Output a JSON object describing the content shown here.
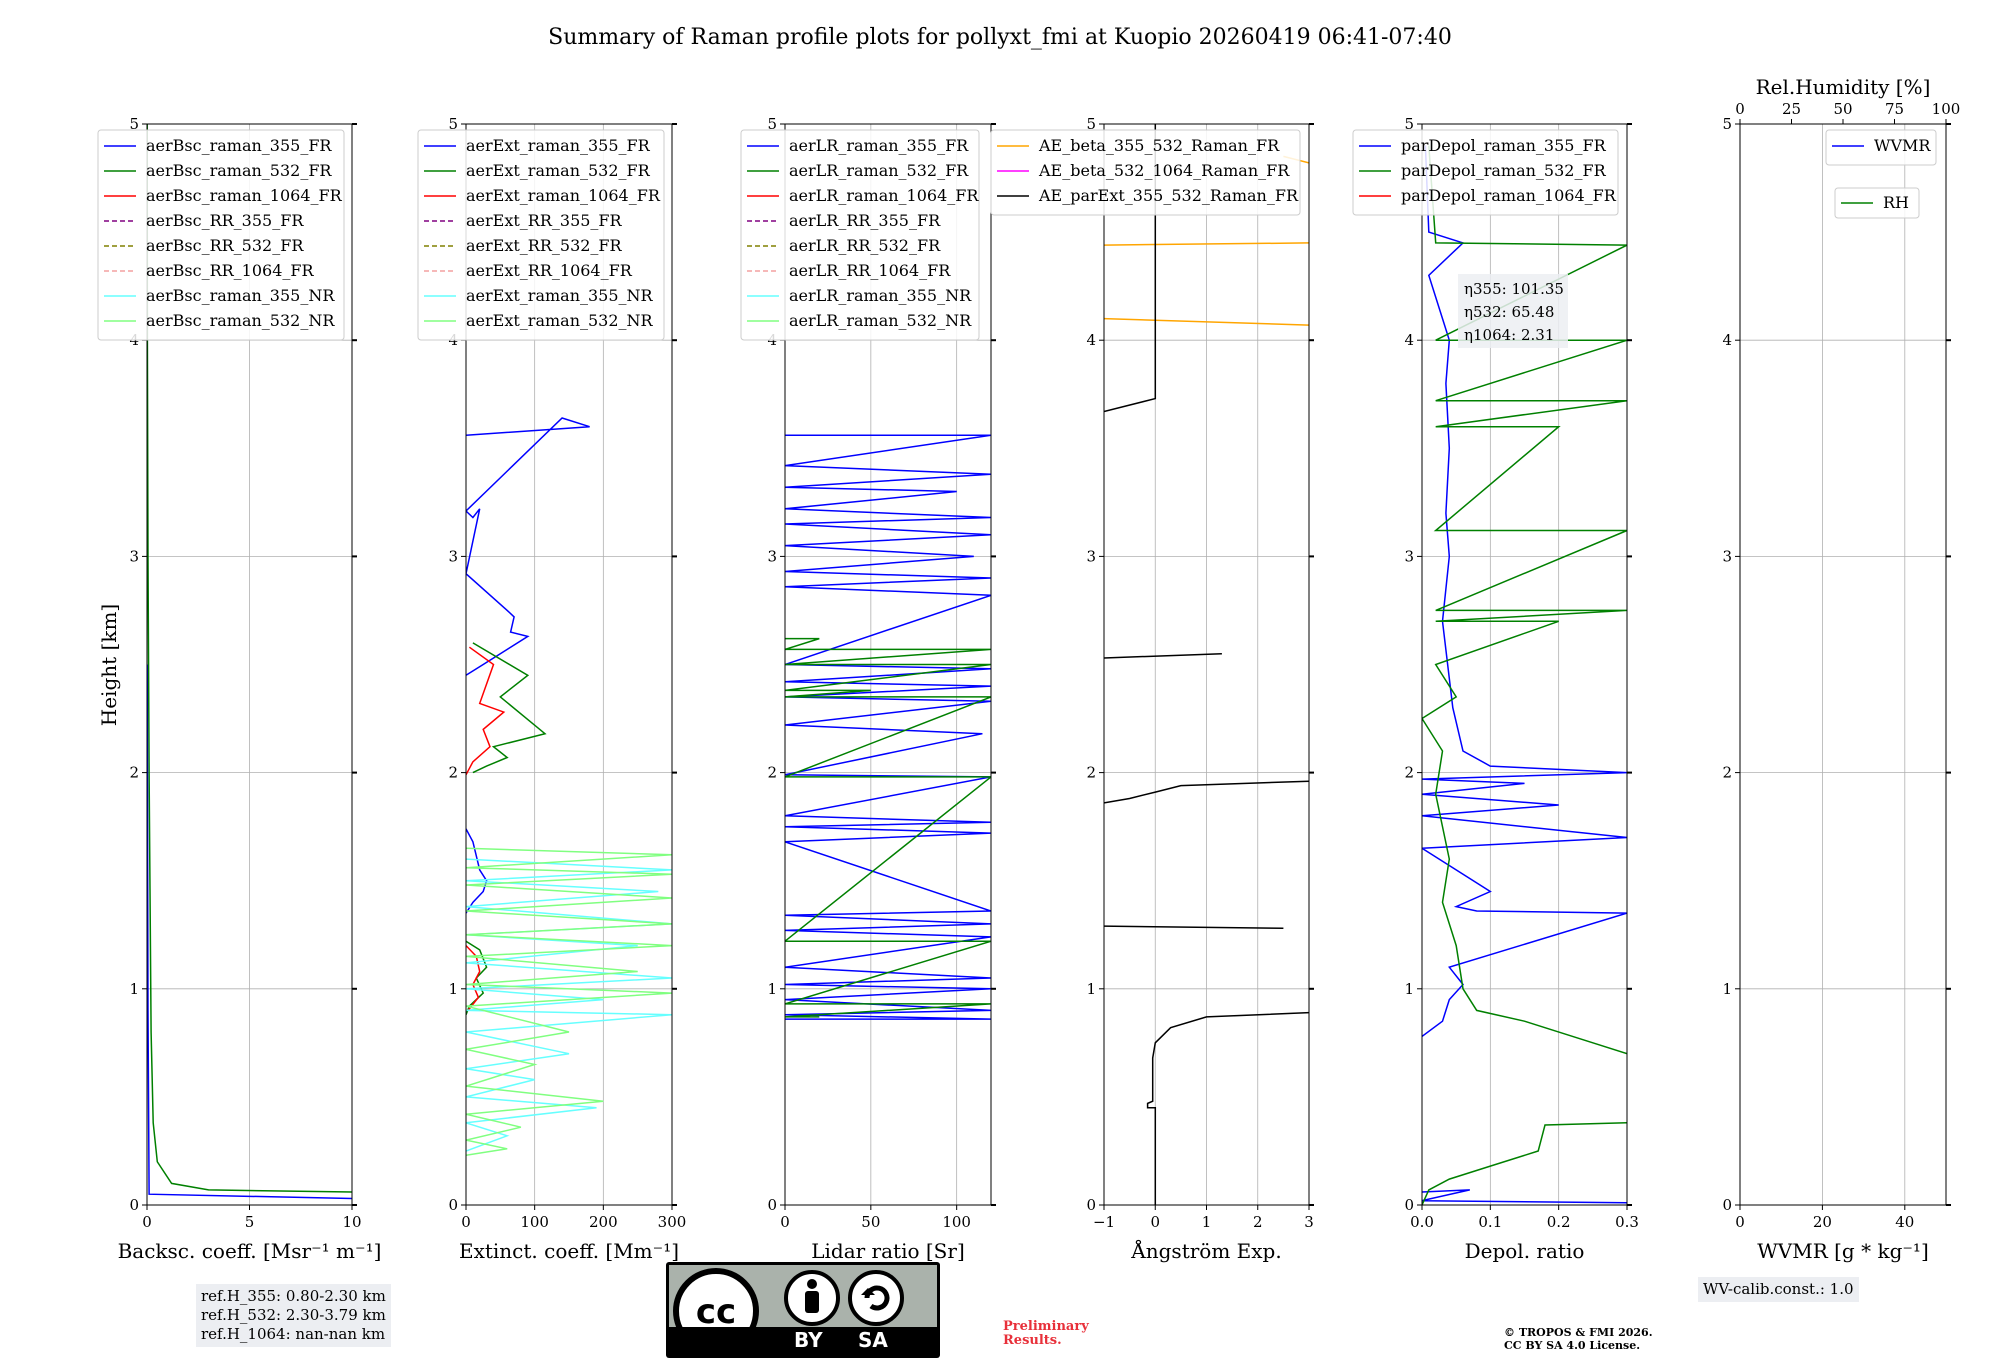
{
  "figure_title": "Summary of Raman profile plots for pollyxt_fmi at Kuopio 20260419 06:41-07:40",
  "y_label": "Height [km]",
  "colors": {
    "blue": "#0000ff",
    "green": "#008000",
    "red": "#ff0000",
    "purple": "#800080",
    "olive": "#808000",
    "salmon": "#f4a0a0",
    "cyan": "#66ffff",
    "lightgreen": "#80ff80",
    "orange": "#ffa500",
    "magenta": "#ff00ff",
    "black": "#000000"
  },
  "chart_data": [
    {
      "id": "backscatter",
      "type": "line",
      "xlabel": "Backsc. coeff. [Msr⁻¹ m⁻¹]",
      "ylabel": "Height [km]",
      "xlim": [
        0,
        10
      ],
      "ylim": [
        0,
        5
      ],
      "xticks": [
        "0",
        "5",
        "10"
      ],
      "xtickvals": [
        0,
        5,
        10
      ],
      "yticks": [
        "0",
        "1",
        "2",
        "3",
        "4",
        "5"
      ],
      "legend": [
        "aerBsc_raman_355_FR",
        "aerBsc_raman_532_FR",
        "aerBsc_raman_1064_FR",
        "aerBsc_RR_355_FR",
        "aerBsc_RR_532_FR",
        "aerBsc_RR_1064_FR",
        "aerBsc_raman_355_NR",
        "aerBsc_raman_532_NR"
      ],
      "legend_colors": [
        "blue",
        "green",
        "red",
        "purple",
        "olive",
        "salmon",
        "cyan",
        "lightgreen"
      ],
      "legend_dashed": [
        false,
        false,
        false,
        true,
        true,
        true,
        false,
        false
      ],
      "series": [
        {
          "name": "aerBsc_raman_532_FR",
          "color": "green",
          "x": [
            10,
            3,
            1.2,
            0.5,
            0.3,
            0.2,
            0.1,
            0.05,
            0.02,
            0.01
          ],
          "y": [
            0.06,
            0.07,
            0.1,
            0.2,
            0.38,
            0.8,
            2,
            3,
            4,
            5
          ]
        },
        {
          "name": "aerBsc_raman_355_FR",
          "color": "blue",
          "x": [
            10,
            0.1,
            0.05,
            0.02,
            0.01
          ],
          "y": [
            0.03,
            0.05,
            0.9,
            2.1,
            2.5
          ]
        }
      ]
    },
    {
      "id": "extinction",
      "type": "line",
      "xlabel": "Extinct. coeff. [Mm⁻¹]",
      "xlim": [
        0,
        300
      ],
      "ylim": [
        0,
        5
      ],
      "xticks": [
        "0",
        "100",
        "200",
        "300"
      ],
      "xtickvals": [
        0,
        100,
        200,
        300
      ],
      "yticks": [
        "0",
        "1",
        "2",
        "3",
        "4",
        "5"
      ],
      "legend": [
        "aerExt_raman_355_FR",
        "aerExt_raman_532_FR",
        "aerExt_raman_1064_FR",
        "aerExt_RR_355_FR",
        "aerExt_RR_532_FR",
        "aerExt_RR_1064_FR",
        "aerExt_raman_355_NR",
        "aerExt_raman_532_NR"
      ],
      "legend_colors": [
        "blue",
        "green",
        "red",
        "purple",
        "olive",
        "salmon",
        "cyan",
        "lightgreen"
      ],
      "legend_dashed": [
        false,
        false,
        false,
        true,
        true,
        true,
        false,
        false
      ],
      "series": [
        {
          "name": "aerExt_raman_355_FR",
          "color": "blue",
          "x": [
            0,
            180,
            140,
            0,
            10,
            20,
            0,
            60,
            70,
            65,
            90,
            50,
            25,
            0
          ],
          "y": [
            3.56,
            3.6,
            3.64,
            3.21,
            3.18,
            3.22,
            2.92,
            2.75,
            2.72,
            2.65,
            2.63,
            2.55,
            2.5,
            2.45
          ]
        },
        {
          "name": "aerExt_raman_355_FR_low",
          "color": "blue",
          "x": [
            0,
            10,
            20,
            30,
            25,
            10,
            0
          ],
          "y": [
            1.74,
            1.68,
            1.55,
            1.5,
            1.45,
            1.4,
            1.35
          ]
        },
        {
          "name": "aerExt_raman_532_FR",
          "color": "green",
          "x": [
            10,
            90,
            50,
            115,
            40,
            60,
            30,
            10
          ],
          "y": [
            2.6,
            2.45,
            2.35,
            2.18,
            2.12,
            2.07,
            2.03,
            2.0
          ]
        },
        {
          "name": "aerExt_raman_1064_FR",
          "color": "red",
          "x": [
            5,
            40,
            20,
            55,
            25,
            35,
            10,
            0
          ],
          "y": [
            2.58,
            2.5,
            2.32,
            2.28,
            2.2,
            2.12,
            2.05,
            1.99
          ]
        },
        {
          "name": "aerExt_raman_532_FR_low",
          "color": "green",
          "x": [
            0,
            20,
            30,
            15,
            25,
            5,
            0
          ],
          "y": [
            1.22,
            1.18,
            1.1,
            1.05,
            0.98,
            0.92,
            0.88
          ]
        },
        {
          "name": "aerExt_raman_1064_FR_low",
          "color": "red",
          "x": [
            0,
            15,
            20,
            10,
            18,
            3
          ],
          "y": [
            1.2,
            1.15,
            1.08,
            1.02,
            0.96,
            0.9
          ]
        },
        {
          "name": "aerExt_raman_355_NR",
          "color": "cyan",
          "x": [
            0,
            300,
            0,
            280,
            0,
            300,
            0,
            250,
            0,
            300,
            0,
            200,
            0,
            300,
            0,
            150,
            0,
            100,
            0,
            190,
            0,
            60,
            0
          ],
          "y": [
            1.6,
            1.55,
            1.5,
            1.45,
            1.38,
            1.3,
            1.25,
            1.2,
            1.12,
            1.05,
            1.0,
            0.95,
            0.9,
            0.88,
            0.8,
            0.7,
            0.63,
            0.58,
            0.5,
            0.45,
            0.38,
            0.32,
            0.25
          ]
        },
        {
          "name": "aerExt_raman_532_NR",
          "color": "lightgreen",
          "x": [
            0,
            300,
            0,
            300,
            0,
            300,
            0,
            300,
            0,
            300,
            0,
            250,
            0,
            300,
            0,
            150,
            0,
            100,
            0,
            200,
            0,
            80,
            0,
            60,
            0
          ],
          "y": [
            1.65,
            1.62,
            1.56,
            1.53,
            1.48,
            1.42,
            1.36,
            1.3,
            1.25,
            1.2,
            1.15,
            1.08,
            1.02,
            0.98,
            0.92,
            0.8,
            0.72,
            0.65,
            0.55,
            0.48,
            0.42,
            0.36,
            0.3,
            0.26,
            0.23
          ]
        }
      ]
    },
    {
      "id": "lidar_ratio",
      "type": "line",
      "xlabel": "Lidar ratio [Sr]",
      "xlim": [
        0,
        120
      ],
      "ylim": [
        0,
        5
      ],
      "xticks": [
        "0",
        "50",
        "100"
      ],
      "xtickvals": [
        0,
        50,
        100
      ],
      "yticks": [
        "0",
        "1",
        "2",
        "3",
        "4",
        "5"
      ],
      "legend": [
        "aerLR_raman_355_FR",
        "aerLR_raman_532_FR",
        "aerLR_raman_1064_FR",
        "aerLR_RR_355_FR",
        "aerLR_RR_532_FR",
        "aerLR_RR_1064_FR",
        "aerLR_raman_355_NR",
        "aerLR_raman_532_NR"
      ],
      "legend_colors": [
        "blue",
        "green",
        "red",
        "purple",
        "olive",
        "salmon",
        "cyan",
        "lightgreen"
      ],
      "legend_dashed": [
        false,
        false,
        false,
        true,
        true,
        true,
        false,
        false
      ],
      "series": [
        {
          "name": "aerLR_raman_355_FR",
          "color": "blue",
          "x": [
            0,
            120,
            0,
            120,
            0,
            100,
            0,
            120,
            0,
            120,
            0,
            110,
            0,
            120,
            0,
            120,
            0,
            120,
            0,
            120,
            0,
            120,
            0,
            115,
            0,
            120,
            0,
            120,
            0,
            120,
            0,
            120,
            0,
            120,
            0,
            120,
            0,
            120,
            0,
            120,
            0,
            120,
            0,
            120,
            0
          ],
          "y": [
            3.56,
            3.56,
            3.42,
            3.38,
            3.32,
            3.3,
            3.22,
            3.18,
            3.15,
            3.1,
            3.05,
            3.0,
            2.93,
            2.9,
            2.86,
            2.82,
            2.5,
            2.48,
            2.42,
            2.4,
            2.35,
            2.33,
            2.22,
            2.18,
            1.99,
            1.98,
            1.8,
            1.77,
            1.75,
            1.72,
            1.68,
            1.36,
            1.34,
            1.3,
            1.27,
            1.24,
            1.1,
            1.05,
            1.02,
            1.0,
            0.95,
            0.9,
            0.88,
            0.86,
            0.86
          ]
        },
        {
          "name": "aerLR_raman_532_FR",
          "color": "green",
          "x": [
            0,
            20,
            0,
            120,
            0,
            120,
            0,
            50,
            0,
            120,
            0,
            120,
            0,
            120,
            0,
            120,
            0,
            20,
            0
          ],
          "y": [
            2.62,
            2.62,
            2.57,
            2.57,
            2.5,
            2.5,
            2.38,
            2.38,
            2.35,
            2.35,
            1.98,
            1.98,
            1.22,
            1.22,
            0.93,
            0.93,
            0.87,
            0.87,
            0.87
          ]
        }
      ]
    },
    {
      "id": "angstrom",
      "type": "line",
      "xlabel": "Ångström Exp.",
      "xlim": [
        -1,
        3
      ],
      "ylim": [
        0,
        5
      ],
      "xticks": [
        "−1",
        "0",
        "1",
        "2",
        "3"
      ],
      "xtickvals": [
        -1,
        0,
        1,
        2,
        3
      ],
      "yticks": [
        "0",
        "1",
        "2",
        "3",
        "4",
        "5"
      ],
      "legend": [
        "AE_beta_355_532_Raman_FR",
        "AE_beta_532_1064_Raman_FR",
        "AE_parExt_355_532_Raman_FR"
      ],
      "legend_colors": [
        "orange",
        "magenta",
        "black"
      ],
      "legend_dashed": [
        false,
        false,
        false
      ],
      "series": [
        {
          "name": "AE_beta_355_532_Raman_FR",
          "color": "orange",
          "x": [
            -1,
            3
          ],
          "y": [
            4.44,
            4.45
          ]
        },
        {
          "name": "AE_beta_355_532_Raman_FR_2",
          "color": "orange",
          "x": [
            -1,
            3
          ],
          "y": [
            4.1,
            4.07
          ]
        },
        {
          "name": "AE_beta_355_532_Raman_FR_3",
          "color": "orange",
          "x": [
            2.5,
            3
          ],
          "y": [
            4.85,
            4.82
          ]
        },
        {
          "name": "AE_parExt_355_532_Raman_FR",
          "color": "black",
          "x": [
            0,
            0,
            -1
          ],
          "y": [
            5,
            3.73,
            3.67
          ]
        },
        {
          "name": "AE_parExt_355_532_Raman_FR_2",
          "color": "black",
          "x": [
            -1,
            1.3
          ],
          "y": [
            2.53,
            2.55
          ]
        },
        {
          "name": "AE_parExt_355_532_Raman_FR_3",
          "color": "black",
          "x": [
            3,
            0.5,
            0,
            -0.5,
            -1
          ],
          "y": [
            1.96,
            1.94,
            1.91,
            1.88,
            1.86
          ]
        },
        {
          "name": "AE_parExt_355_532_Raman_FR_4",
          "color": "black",
          "x": [
            -1,
            2.5
          ],
          "y": [
            1.29,
            1.28
          ]
        },
        {
          "name": "AE_parExt_355_532_Raman_FR_5",
          "color": "black",
          "x": [
            3,
            1.0,
            0.3,
            0,
            -0.05,
            -0.05,
            -0.15,
            -0.15,
            0,
            0
          ],
          "y": [
            0.89,
            0.87,
            0.82,
            0.75,
            0.68,
            0.48,
            0.47,
            0.45,
            0.45,
            0.0
          ]
        }
      ]
    },
    {
      "id": "depol",
      "type": "line",
      "xlabel": "Depol. ratio",
      "xlim": [
        0,
        0.3
      ],
      "ylim": [
        0,
        5
      ],
      "xticks": [
        "0.0",
        "0.1",
        "0.2",
        "0.3"
      ],
      "xtickvals": [
        0,
        0.1,
        0.2,
        0.3
      ],
      "yticks": [
        "0",
        "1",
        "2",
        "3",
        "4",
        "5"
      ],
      "legend": [
        "parDepol_raman_355_FR",
        "parDepol_raman_532_FR",
        "parDepol_raman_1064_FR"
      ],
      "legend_colors": [
        "blue",
        "green",
        "red"
      ],
      "legend_dashed": [
        false,
        false,
        false
      ],
      "annotation": {
        "label_355": "η355: 101.35",
        "label_532": "η532: 65.48",
        "label_1064": "η1064: 2.31"
      },
      "series": [
        {
          "name": "parDepol_raman_355_FR",
          "color": "blue",
          "x": [
            0.005,
            0.01,
            0.06,
            0.01,
            0.03,
            0.04,
            0.035,
            0.04,
            0.035,
            0.04,
            0.03,
            0.045,
            0.06,
            0.1,
            0.3,
            0.0,
            0.15,
            0.0,
            0.2,
            0.0,
            0.3,
            0.0,
            0.1,
            0.05,
            0.08,
            0.3,
            0.04,
            0.06,
            0.04,
            0.03,
            0.0
          ],
          "y": [
            4.9,
            4.5,
            4.45,
            4.3,
            4.1,
            4.0,
            3.8,
            3.5,
            3.2,
            3.0,
            2.7,
            2.3,
            2.1,
            2.03,
            2.0,
            1.97,
            1.95,
            1.9,
            1.85,
            1.8,
            1.7,
            1.65,
            1.45,
            1.38,
            1.36,
            1.35,
            1.1,
            1.02,
            0.95,
            0.85,
            0.78
          ]
        },
        {
          "name": "parDepol_raman_355_FR_low",
          "color": "blue",
          "x": [
            0.0,
            0.07,
            0.0,
            0.3
          ],
          "y": [
            0.06,
            0.07,
            0.02,
            0.01
          ]
        },
        {
          "name": "parDepol_raman_532_FR",
          "color": "green",
          "x": [
            0.01,
            0.02,
            0.3,
            0.02,
            0.3,
            0.02,
            0.3,
            0.02,
            0.2,
            0.02,
            0.3,
            0.02,
            0.3,
            0.02,
            0.2,
            0.02,
            0.05,
            0.0,
            0.03,
            0.02,
            0.04,
            0.03,
            0.05,
            0.06,
            0.08,
            0.15,
            0.25,
            0.3
          ],
          "y": [
            4.9,
            4.45,
            4.44,
            4.0,
            4.0,
            3.72,
            3.72,
            3.6,
            3.6,
            3.12,
            3.12,
            2.75,
            2.75,
            2.7,
            2.7,
            2.5,
            2.35,
            2.25,
            2.1,
            1.9,
            1.6,
            1.4,
            1.2,
            1.0,
            0.9,
            0.85,
            0.75,
            0.7
          ]
        },
        {
          "name": "parDepol_raman_532_FR_low",
          "color": "green",
          "x": [
            0.3,
            0.18,
            0.17,
            0.1,
            0.04,
            0.01,
            0.0
          ],
          "y": [
            0.38,
            0.37,
            0.25,
            0.18,
            0.12,
            0.07,
            0.0
          ]
        }
      ]
    },
    {
      "id": "humidity",
      "type": "line",
      "xlabel": "WVMR [g * kg⁻¹]",
      "top_xlabel": "Rel.Humidity [%]",
      "xlim": [
        0,
        50
      ],
      "ylim": [
        0,
        5
      ],
      "xticks": [
        "0",
        "20",
        "40"
      ],
      "xtickvals": [
        0,
        20,
        40
      ],
      "top_xticks": [
        "0",
        "25",
        "50",
        "75",
        "100"
      ],
      "top_xtickvals": [
        0,
        25,
        50,
        75,
        100
      ],
      "top_xlim": [
        0,
        100
      ],
      "yticks": [
        "0",
        "1",
        "2",
        "3",
        "4",
        "5"
      ],
      "legend": [
        "WVMR"
      ],
      "legend_colors": [
        "blue"
      ],
      "legend2": [
        "RH"
      ],
      "legend2_colors": [
        "green"
      ],
      "series": []
    }
  ],
  "ref_heights": [
    "ref.H_355: 0.80-2.30 km",
    "ref.H_532: 2.30-3.79 km",
    "ref.H_1064: nan-nan km"
  ],
  "wv_calib": "WV-calib.const.: 1.0",
  "license": {
    "by": "BY",
    "sa": "SA",
    "cc": "cc"
  },
  "preliminary": [
    "Preliminary",
    "Results."
  ],
  "copyright": [
    "© TROPOS & FMI 2026.",
    "CC BY SA 4.0 License."
  ]
}
